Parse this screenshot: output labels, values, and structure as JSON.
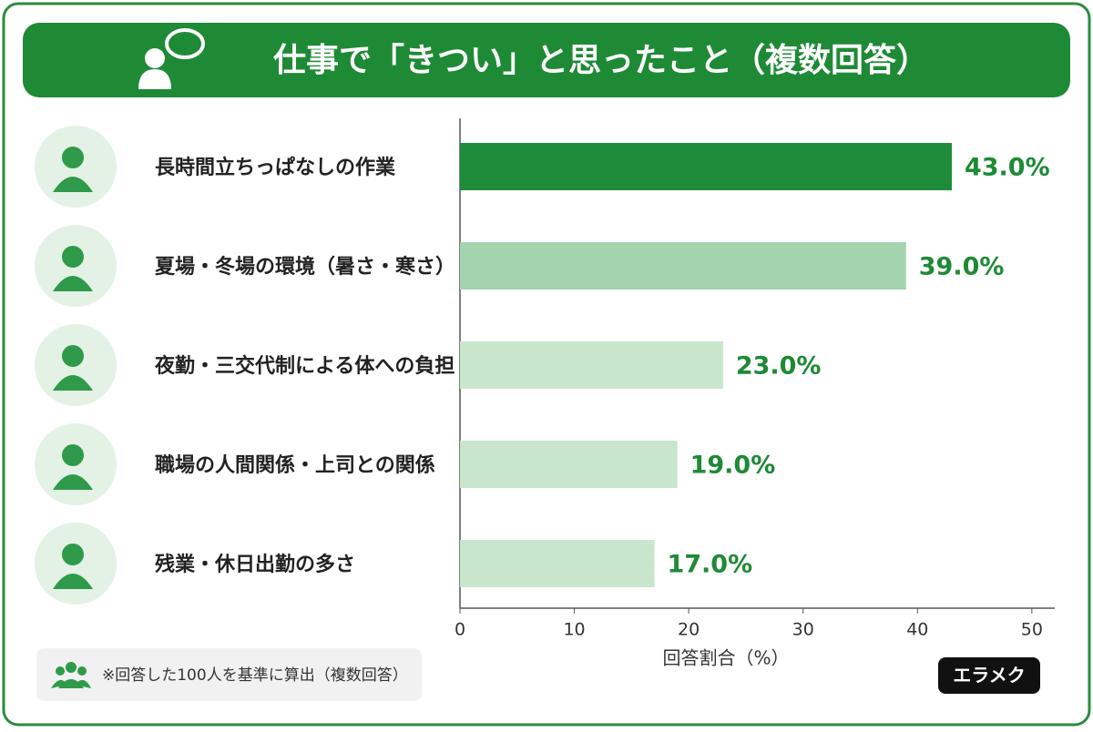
{
  "chart_data": {
    "type": "bar",
    "orientation": "horizontal",
    "title": "仕事で「きつい」と思ったこと（複数回答）",
    "categories": [
      "長時間立ちっぱなしの作業",
      "夏場・冬場の環境（暑さ・寒さ）",
      "夜勤・三交代制による体への負担",
      "職場の人間関係・上司との関係",
      "残業・休日出勤の多さ"
    ],
    "values": [
      43.0,
      39.0,
      23.0,
      19.0,
      17.0
    ],
    "value_labels": [
      "43.0%",
      "39.0%",
      "23.0%",
      "19.0%",
      "17.0%"
    ],
    "colors": [
      "#1e8c3a",
      "#a3d4ae",
      "#c8e6cc",
      "#c8e6cc",
      "#c8e6cc"
    ],
    "xlabel": "回答割合（%）",
    "xlim": [
      0,
      52
    ],
    "xticks": [
      0,
      10,
      20,
      30,
      40,
      50
    ],
    "note": "※回答した100人を基準に算出（複数回答）",
    "brand": "エラメク"
  }
}
